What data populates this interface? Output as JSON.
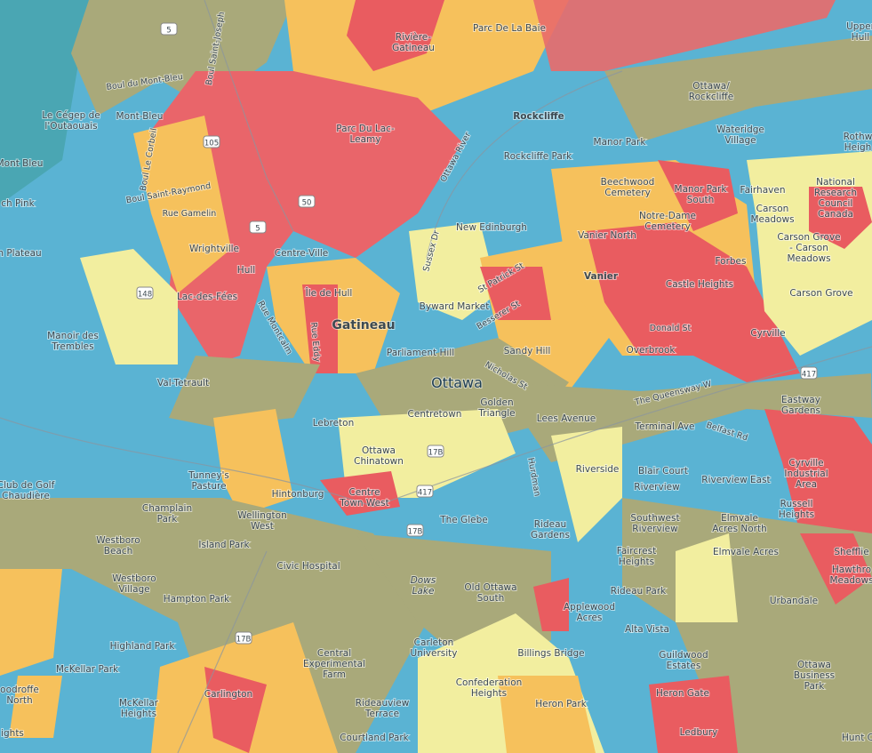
{
  "places": [
    [
      "Parc De La Baie"
    ],
    [
      "Rivière-",
      "Gatineau"
    ],
    [
      "Upper",
      "Hull"
    ],
    [
      "Mont-Bleu"
    ],
    [
      "Le Cégep de",
      "l'Outaouais"
    ],
    [
      "Ottawa/",
      "Rockcliffe"
    ],
    [
      "Rockcliffe"
    ],
    [
      "Manor Park"
    ],
    [
      "Wateridge",
      "Village"
    ],
    [
      "Rothw",
      "Heigh"
    ],
    [
      "Parc Du Lac-",
      "Leamy"
    ],
    [
      "Rockcliffe Park"
    ],
    [
      "Mont Bleu"
    ],
    [
      "Beechwood",
      "Cemetery"
    ],
    [
      "Manor Park",
      "South"
    ],
    [
      "Fairhaven"
    ],
    [
      "National",
      "Research",
      "Council",
      "Canada"
    ],
    [
      "Notre-Dame",
      "Cemetery"
    ],
    [
      "Carson",
      "Meadows"
    ],
    [
      "New Edinburgh"
    ],
    [
      "Vanier North"
    ],
    [
      "Carson Grove",
      "- Carson",
      "Meadows"
    ],
    [
      "Wrightville"
    ],
    [
      "Centre-Ville"
    ],
    [
      "Hull"
    ],
    [
      "Forbes"
    ],
    [
      "Vanier"
    ],
    [
      "Castle Heights"
    ],
    [
      "Lac-des-Fées"
    ],
    [
      "Île de Hull"
    ],
    [
      "Carson Grove"
    ],
    [
      "Byward Market"
    ],
    [
      "Gatineau"
    ],
    [
      "Manoir des",
      "Trembles"
    ],
    [
      "Cyrville"
    ],
    [
      "Parliament Hill"
    ],
    [
      "Sandy Hill"
    ],
    [
      "Overbrook"
    ],
    [
      "Val-Tetrault"
    ],
    [
      "Ottawa"
    ],
    [
      "Eastway",
      "Gardens"
    ],
    [
      "Centretown"
    ],
    [
      "Golden",
      "Triangle"
    ],
    [
      "Lees Avenue"
    ],
    [
      "Lebreton"
    ],
    [
      "Terminal Ave"
    ],
    [
      "Ottawa",
      "Chinatown"
    ],
    [
      "Cyrville",
      "Industrial",
      "Area"
    ],
    [
      "Tunney's",
      "Pasture"
    ],
    [
      "Riverside"
    ],
    [
      "Blair Court"
    ],
    [
      "Club de Golf",
      "Chaudière"
    ],
    [
      "Hintonburg"
    ],
    [
      "Centre",
      "Town West"
    ],
    [
      "Riverview"
    ],
    [
      "Riverview East"
    ],
    [
      "Russell",
      "Heights"
    ],
    [
      "Champlain",
      "Park"
    ],
    [
      "Wellington",
      "West"
    ],
    [
      "The Glebe"
    ],
    [
      "Southwest",
      "Riverview"
    ],
    [
      "Elmvale",
      "Acres North"
    ],
    [
      "Rideau",
      "Gardens"
    ],
    [
      "Island Park"
    ],
    [
      "Westboro",
      "Beach"
    ],
    [
      "Civic Hospital"
    ],
    [
      "Faircrest",
      "Heights"
    ],
    [
      "Elmvale Acres"
    ],
    [
      "Shefflie"
    ],
    [
      "Hawthro",
      "Meadows"
    ],
    [
      "Westboro",
      "Village"
    ],
    [
      "Dows",
      "Lake"
    ],
    [
      "Old Ottawa",
      "South"
    ],
    [
      "Rideau Park"
    ],
    [
      "Hampton Park"
    ],
    [
      "Applewood",
      "Acres"
    ],
    [
      "Urbandale"
    ],
    [
      "Highland Park"
    ],
    [
      "Alta Vista"
    ],
    [
      "Carleton",
      "University"
    ],
    [
      "Central",
      "Experimental",
      "Farm"
    ],
    [
      "Billings Bridge"
    ],
    [
      "Guildwood",
      "Estates"
    ],
    [
      "Ottawa",
      "Business",
      "Park"
    ],
    [
      "McKellar Park"
    ],
    [
      "Confederation",
      "Heights"
    ],
    [
      "Carlington"
    ],
    [
      "Heron Gate"
    ],
    [
      "oodroffe",
      "North"
    ],
    [
      "McKellar",
      "Heights"
    ],
    [
      "Rideauview",
      "Terrace"
    ],
    [
      "Heron Park"
    ],
    [
      "ights"
    ],
    [
      "Courtland Park"
    ],
    [
      "Ledbury"
    ],
    [
      "Hunt C"
    ],
    [
      "ch Pink"
    ],
    [
      "n Plateau"
    ]
  ],
  "roads": [
    "Boul du Mont-Bleu",
    "Boul Saint-Joseph",
    "Ottawa River",
    "Boul Saint-Raymond",
    "Rue Gamelin",
    "The Queensway W",
    "Belfast Rd",
    "Nicholas St",
    "Rue Eddy",
    "Rue Montcalm",
    "Sussex Dr",
    "St Patrick St",
    "Besserer St",
    "Donald St",
    "Boul Le Corbeil",
    "Hurdman"
  ],
  "shields": [
    "5",
    "105",
    "50",
    "5",
    "148",
    "417",
    "17B",
    "17B",
    "17B",
    "417"
  ]
}
